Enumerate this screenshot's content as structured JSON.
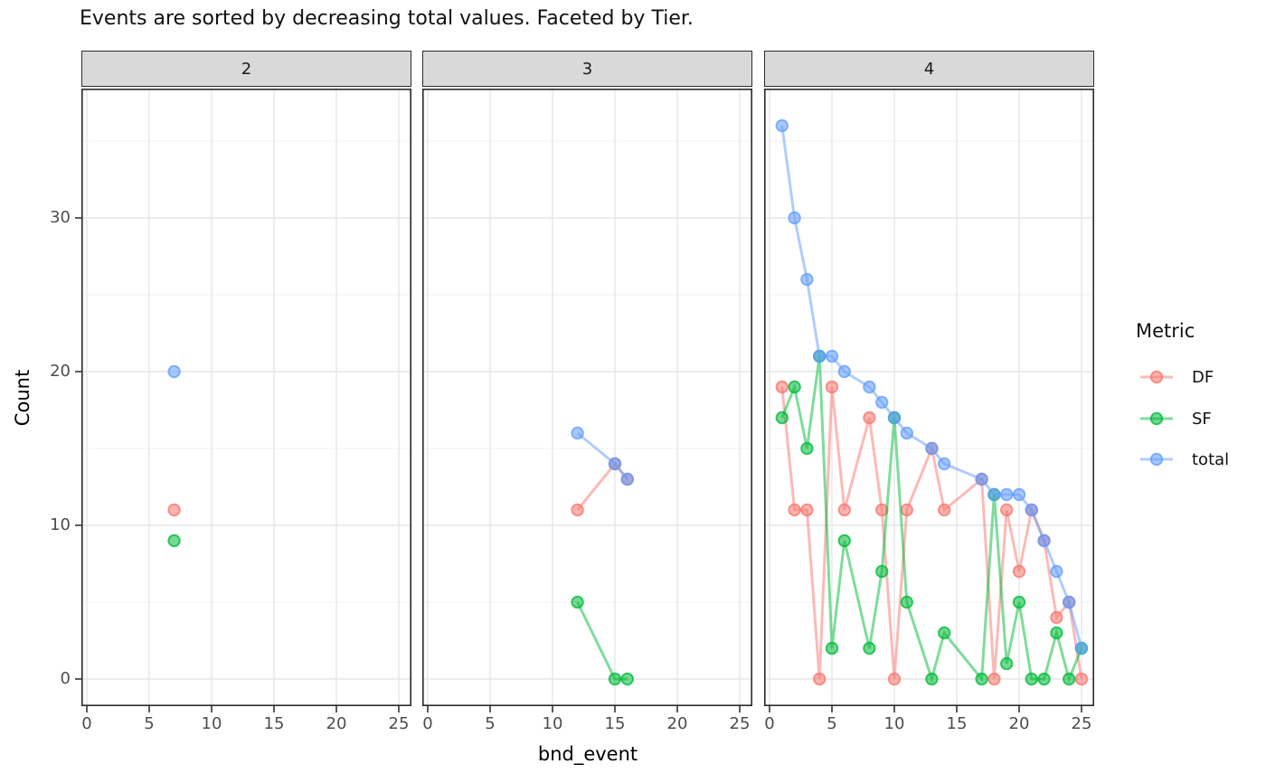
{
  "title": "Events are sorted by decreasing total values. Faceted by Tier.",
  "axes": {
    "x_label": "bnd_event",
    "y_label": "Count",
    "x_ticks": [
      0,
      5,
      10,
      15,
      20,
      25
    ],
    "y_ticks": [
      0,
      10,
      20,
      30
    ]
  },
  "legend": {
    "title": "Metric",
    "entries": [
      {
        "name": "DF",
        "label": "DF",
        "color": "#F8766D"
      },
      {
        "name": "SF",
        "label": "SF",
        "color": "#00BA38"
      },
      {
        "name": "total",
        "label": "total",
        "color": "#619CFF"
      }
    ]
  },
  "colors": {
    "strip_bg": "#D9D9D9",
    "panel_border": "#2b2b2b",
    "grid_major": "#E6E6E6",
    "grid_minor": "#F1F1F1",
    "tick": "#333333",
    "tick_label": "#4d4d4d"
  },
  "chart_data": {
    "type": "line",
    "title": "Events are sorted by decreasing total values. Faceted by Tier.",
    "xlabel": "bnd_event",
    "ylabel": "Count",
    "xlim": [
      0,
      25
    ],
    "ylim": [
      0,
      36
    ],
    "grid": true,
    "legend_position": "right",
    "facet_by": "Tier",
    "facets": [
      {
        "label": "2",
        "series": [
          {
            "name": "DF",
            "points": [
              [
                7,
                11
              ]
            ]
          },
          {
            "name": "SF",
            "points": [
              [
                7,
                9
              ]
            ]
          },
          {
            "name": "total",
            "points": [
              [
                7,
                20
              ]
            ]
          }
        ]
      },
      {
        "label": "3",
        "series": [
          {
            "name": "DF",
            "points": [
              [
                12,
                11
              ],
              [
                15,
                14
              ],
              [
                16,
                13
              ]
            ]
          },
          {
            "name": "SF",
            "points": [
              [
                12,
                5
              ],
              [
                15,
                0
              ],
              [
                16,
                0
              ]
            ]
          },
          {
            "name": "total",
            "points": [
              [
                12,
                16
              ],
              [
                15,
                14
              ],
              [
                16,
                13
              ]
            ]
          }
        ]
      },
      {
        "label": "4",
        "series": [
          {
            "name": "DF",
            "points": [
              [
                1,
                19
              ],
              [
                2,
                11
              ],
              [
                3,
                11
              ],
              [
                4,
                0
              ],
              [
                5,
                19
              ],
              [
                6,
                11
              ],
              [
                8,
                17
              ],
              [
                9,
                11
              ],
              [
                10,
                0
              ],
              [
                11,
                11
              ],
              [
                13,
                15
              ],
              [
                14,
                11
              ],
              [
                17,
                13
              ],
              [
                18,
                0
              ],
              [
                19,
                11
              ],
              [
                20,
                7
              ],
              [
                21,
                11
              ],
              [
                22,
                9
              ],
              [
                23,
                4
              ],
              [
                24,
                5
              ],
              [
                25,
                0
              ]
            ]
          },
          {
            "name": "SF",
            "points": [
              [
                1,
                17
              ],
              [
                2,
                19
              ],
              [
                3,
                15
              ],
              [
                4,
                21
              ],
              [
                5,
                2
              ],
              [
                6,
                9
              ],
              [
                8,
                2
              ],
              [
                9,
                7
              ],
              [
                10,
                17
              ],
              [
                11,
                5
              ],
              [
                13,
                0
              ],
              [
                14,
                3
              ],
              [
                17,
                0
              ],
              [
                18,
                12
              ],
              [
                19,
                1
              ],
              [
                20,
                5
              ],
              [
                21,
                0
              ],
              [
                22,
                0
              ],
              [
                23,
                3
              ],
              [
                24,
                0
              ],
              [
                25,
                2
              ]
            ]
          },
          {
            "name": "total",
            "points": [
              [
                1,
                36
              ],
              [
                2,
                30
              ],
              [
                3,
                26
              ],
              [
                4,
                21
              ],
              [
                5,
                21
              ],
              [
                6,
                20
              ],
              [
                8,
                19
              ],
              [
                9,
                18
              ],
              [
                10,
                17
              ],
              [
                11,
                16
              ],
              [
                13,
                15
              ],
              [
                14,
                14
              ],
              [
                17,
                13
              ],
              [
                18,
                12
              ],
              [
                19,
                12
              ],
              [
                20,
                12
              ],
              [
                21,
                11
              ],
              [
                22,
                9
              ],
              [
                23,
                7
              ],
              [
                24,
                5
              ],
              [
                25,
                2
              ]
            ]
          }
        ]
      }
    ]
  }
}
